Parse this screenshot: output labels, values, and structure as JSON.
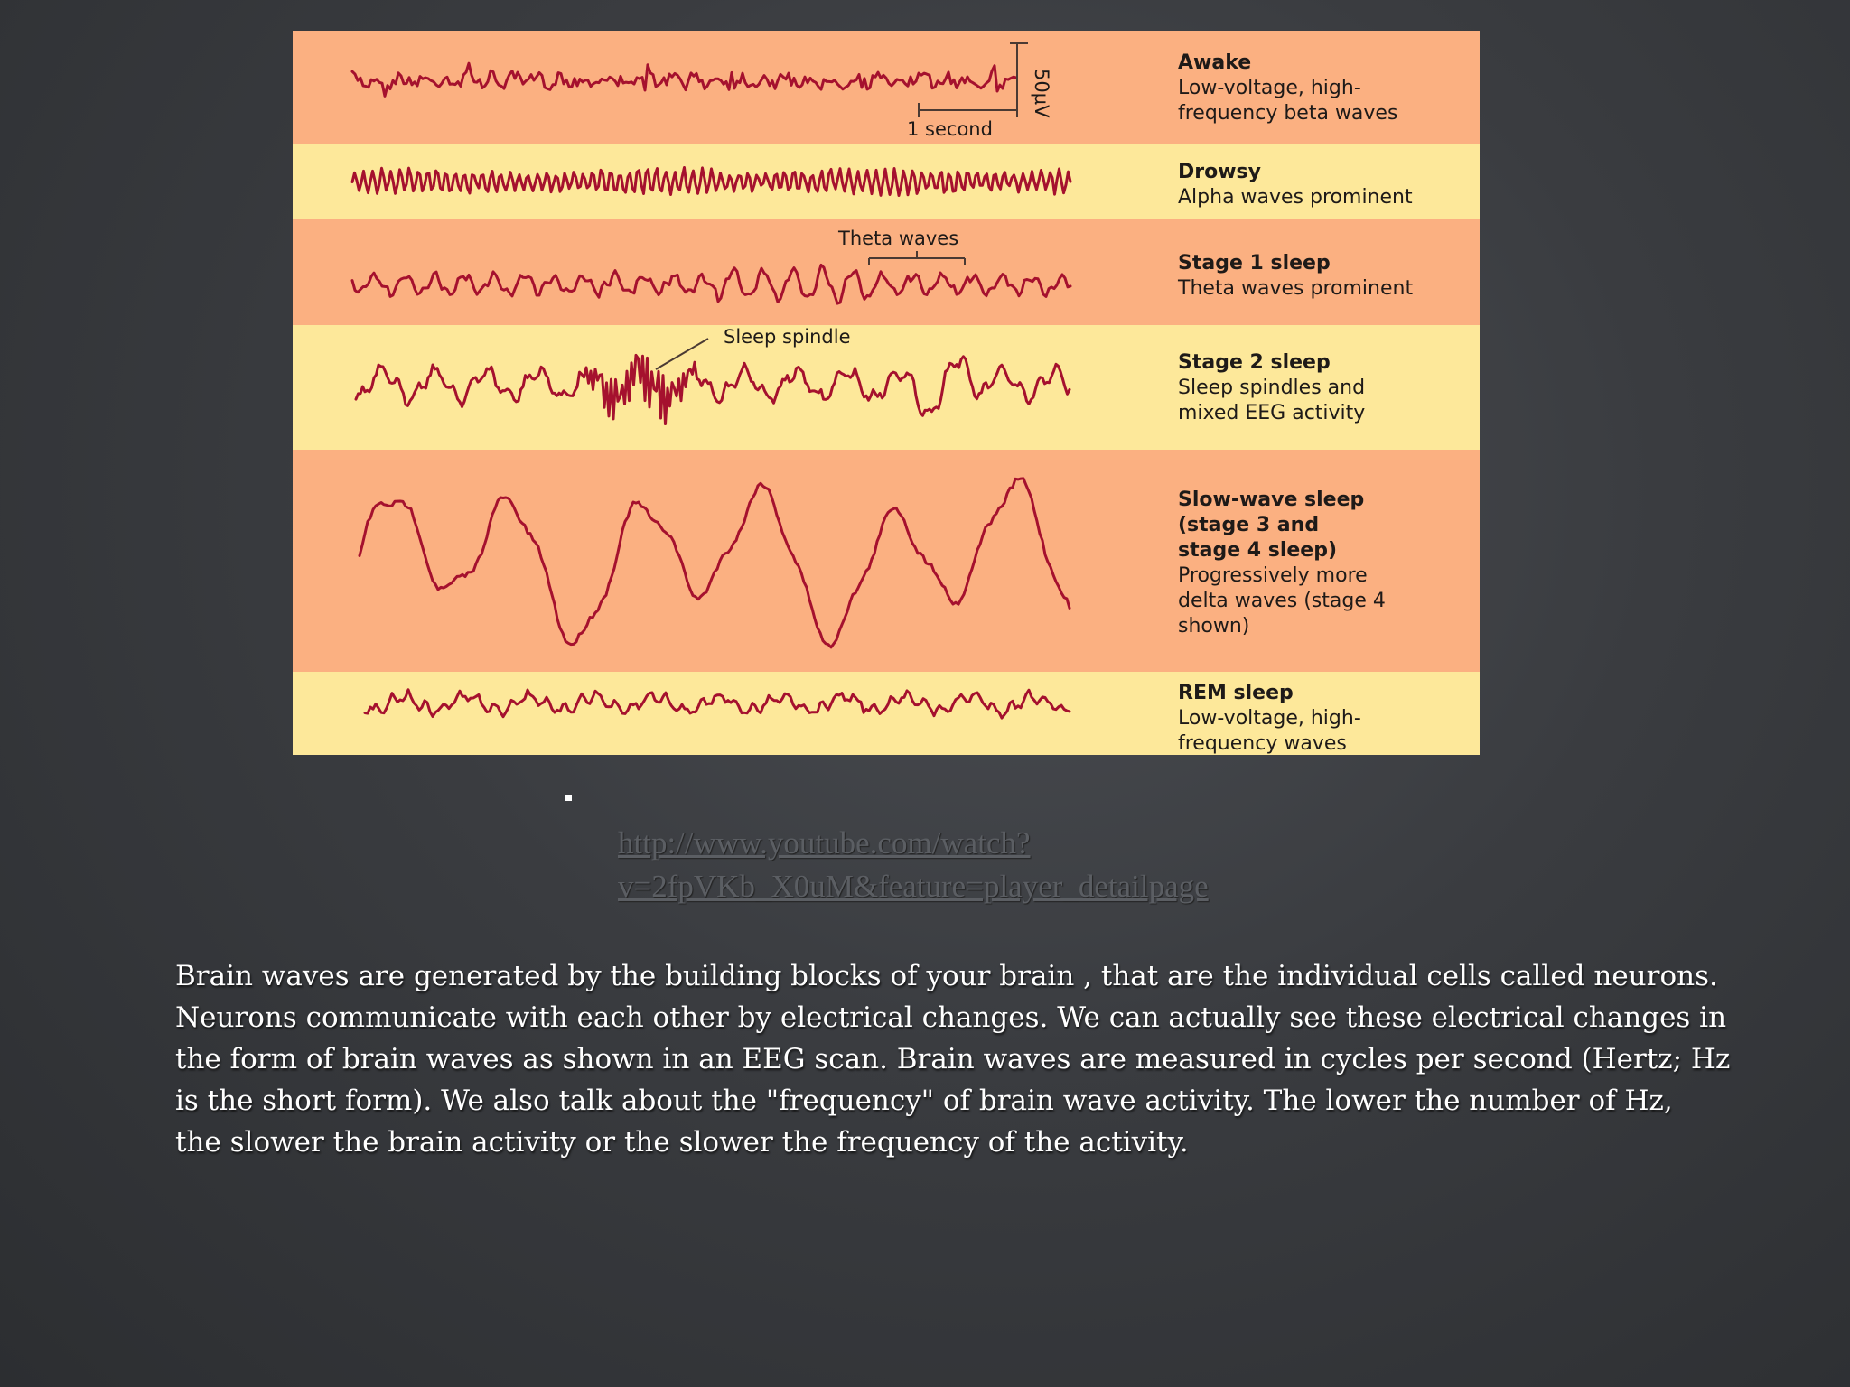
{
  "figure": {
    "colors": {
      "band_orange": "#fbb081",
      "band_yellow": "#fde89a",
      "trace": "#a5112e",
      "text": "#1e1a18"
    },
    "scale": {
      "time_label": "1 second",
      "voltage_label": "50µV"
    },
    "annotations": {
      "theta_waves": "Theta waves",
      "sleep_spindle": "Sleep spindle"
    },
    "bands": [
      {
        "title": "Awake",
        "description": [
          "Low-voltage, high-",
          "frequency beta waves"
        ]
      },
      {
        "title": "Drowsy",
        "description": [
          "Alpha waves prominent"
        ]
      },
      {
        "title": "Stage 1 sleep",
        "description": [
          "Theta waves prominent"
        ]
      },
      {
        "title": "Stage 2 sleep",
        "description": [
          "Sleep spindles and",
          "mixed EEG activity"
        ]
      },
      {
        "title": "Slow-wave sleep",
        "title_lines": [
          "Slow-wave sleep",
          "(stage 3 and",
          "stage 4 sleep)"
        ],
        "description": [
          "Progressively more",
          "delta waves (stage 4",
          "shown)"
        ]
      },
      {
        "title": "REM sleep",
        "description": [
          "Low-voltage, high-",
          "frequency waves"
        ]
      }
    ]
  },
  "bullet": "▪",
  "link": {
    "lines": [
      "http://www.youtube.com/watch?",
      "v=2fpVKb_X0uM&feature=player_detailpage"
    ]
  },
  "body": {
    "lines": [
      "Brain waves are generated by the building blocks of your brain , that are the individual cells called neurons.",
      "Neurons communicate with each other by electrical changes. We can actually see these electrical changes in",
      "the form of brain waves as shown in an EEG scan.  Brain waves are measured in cycles per second (Hertz; Hz",
      "is the short form). We also talk about the \"frequency\" of brain wave activity.  The lower the number of Hz,",
      "the slower the brain activity or the slower the frequency of the activity."
    ]
  }
}
